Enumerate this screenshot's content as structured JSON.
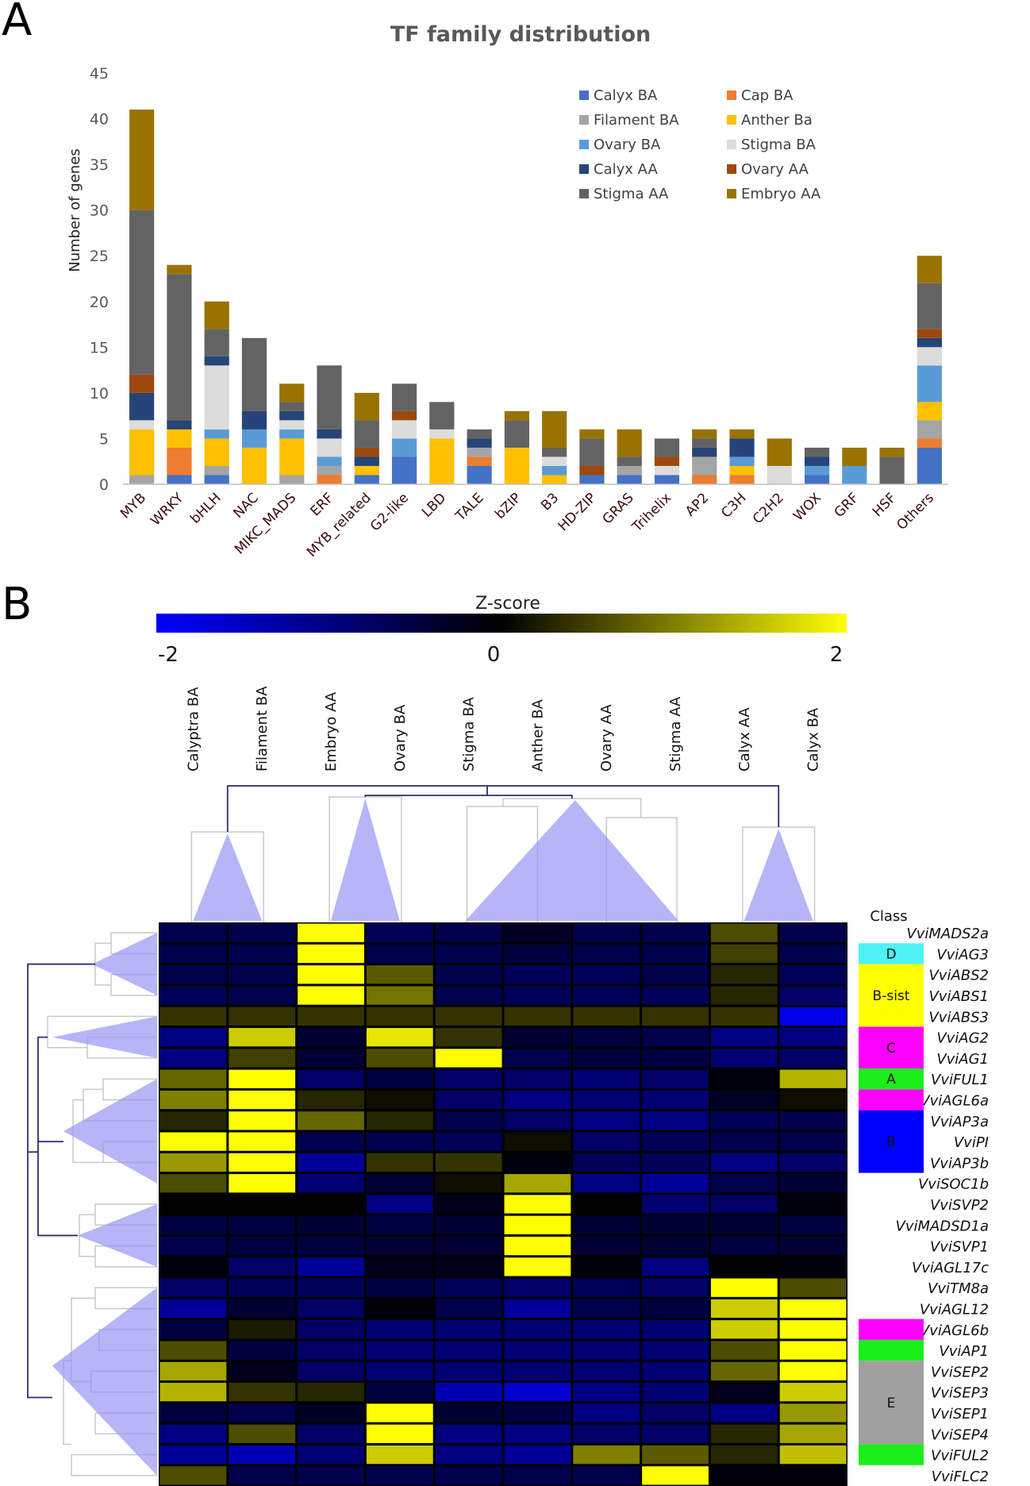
{
  "panels": {
    "a": "A",
    "b": "B"
  },
  "chart_data": [
    {
      "type": "bar",
      "stacked": true,
      "title": "TF family distribution",
      "xlabel": "",
      "ylabel": "Number of genes",
      "ylim": [
        0,
        45
      ],
      "yticks": [
        0,
        5,
        10,
        15,
        20,
        25,
        30,
        35,
        40,
        45
      ],
      "grid": false,
      "legend_position": "top-right",
      "categories": [
        "MYB",
        "WRKY",
        "bHLH",
        "NAC",
        "MIKC_MADS",
        "ERF",
        "MYB_related",
        "G2-like",
        "LBD",
        "TALE",
        "bZIP",
        "B3",
        "HD-ZIP",
        "GRAS",
        "Trihelix",
        "AP2",
        "C3H",
        "C2H2",
        "WOX",
        "GRF",
        "HSF",
        "Others"
      ],
      "series": [
        {
          "name": "Calyx BA",
          "color": "#4472c4",
          "values": [
            0,
            1,
            1,
            0,
            0,
            0,
            1,
            3,
            0,
            2,
            0,
            0,
            1,
            1,
            1,
            0,
            0,
            0,
            1,
            0,
            0,
            4
          ]
        },
        {
          "name": "Cap BA",
          "color": "#ed7d31",
          "values": [
            0,
            3,
            0,
            0,
            0,
            1,
            0,
            0,
            0,
            1,
            0,
            0,
            0,
            0,
            0,
            1,
            1,
            0,
            0,
            0,
            0,
            1
          ]
        },
        {
          "name": "Filament BA",
          "color": "#a5a5a5",
          "values": [
            1,
            0,
            1,
            0,
            1,
            1,
            0,
            0,
            0,
            1,
            0,
            0,
            0,
            1,
            0,
            2,
            0,
            0,
            0,
            0,
            0,
            2
          ]
        },
        {
          "name": "Anther Ba",
          "color": "#ffc000",
          "values": [
            5,
            2,
            3,
            4,
            4,
            0,
            1,
            0,
            5,
            0,
            4,
            1,
            0,
            0,
            0,
            0,
            1,
            0,
            0,
            0,
            0,
            2
          ]
        },
        {
          "name": "Ovary BA",
          "color": "#5b9bd5",
          "values": [
            0,
            0,
            1,
            2,
            1,
            1,
            0,
            2,
            0,
            0,
            0,
            1,
            0,
            0,
            0,
            0,
            1,
            0,
            1,
            2,
            0,
            4
          ]
        },
        {
          "name": "Stigma BA",
          "color": "#dcdcdc",
          "values": [
            1,
            0,
            7,
            0,
            1,
            2,
            0,
            2,
            1,
            0,
            0,
            1,
            0,
            0,
            1,
            0,
            0,
            2,
            0,
            0,
            0,
            2
          ]
        },
        {
          "name": "Calyx AA",
          "color": "#264478",
          "values": [
            3,
            1,
            1,
            2,
            1,
            1,
            1,
            0,
            0,
            1,
            0,
            0,
            0,
            0,
            0,
            1,
            2,
            0,
            1,
            0,
            0,
            1
          ]
        },
        {
          "name": "Ovary AA",
          "color": "#9e480e",
          "values": [
            2,
            0,
            0,
            0,
            0,
            0,
            1,
            1,
            0,
            0,
            0,
            0,
            1,
            0,
            1,
            0,
            0,
            0,
            0,
            0,
            0,
            1
          ]
        },
        {
          "name": "Stigma AA",
          "color": "#636363",
          "values": [
            18,
            16,
            3,
            8,
            1,
            7,
            3,
            3,
            3,
            1,
            3,
            1,
            3,
            1,
            2,
            1,
            0,
            0,
            1,
            0,
            3,
            5
          ]
        },
        {
          "name": "Embryo AA",
          "color": "#997300",
          "values": [
            11,
            1,
            3,
            0,
            2,
            0,
            3,
            0,
            0,
            0,
            1,
            4,
            1,
            3,
            0,
            1,
            1,
            3,
            0,
            2,
            1,
            3
          ]
        }
      ]
    },
    {
      "type": "heatmap",
      "title": "",
      "colorbar": {
        "title": "Z-score",
        "min": -2,
        "mid": 0,
        "max": 2,
        "tick_labels": [
          "-2",
          "0",
          "2"
        ],
        "colors": [
          "#0000ff",
          "#000000",
          "#ffff00"
        ]
      },
      "columns": [
        "Calyptra BA",
        "Filament BA",
        "Embryo AA",
        "Ovary BA",
        "Stigma BA",
        "Anther BA",
        "Ovary AA",
        "Stigma AA",
        "Calyx AA",
        "Calyx BA"
      ],
      "rows": [
        "VviMADS2a",
        "VviAG3",
        "VviABS2",
        "VviABS1",
        "VviABS3",
        "VviAG2",
        "VviAG1",
        "VviFUL1",
        "VviAGL6a",
        "VviAP3a",
        "VviPI",
        "VviAP3b",
        "VviSOC1b",
        "VviSVP2",
        "VviMADSD1a",
        "VviSVP1",
        "VviAGL17c",
        "VviTM8a",
        "VviAGL12",
        "VviAGL6b",
        "VviAP1",
        "VviSEP2",
        "VviSEP3",
        "VviSEP1",
        "VviSEP4",
        "VviFUL2",
        "VviFLC2"
      ],
      "values": [
        [
          -0.6,
          -0.6,
          2.0,
          -0.7,
          -0.6,
          -0.3,
          -0.6,
          -0.6,
          0.6,
          -0.6
        ],
        [
          -0.6,
          -0.6,
          2.0,
          -0.6,
          -0.6,
          -0.5,
          -0.6,
          -0.6,
          0.5,
          -0.6
        ],
        [
          -0.6,
          -0.6,
          2.0,
          0.7,
          -0.6,
          -0.7,
          -0.7,
          -0.6,
          0.3,
          -0.7
        ],
        [
          -0.7,
          -0.6,
          2.0,
          0.9,
          -0.6,
          -0.7,
          -0.7,
          -0.7,
          0.3,
          -0.8
        ],
        [
          0.4,
          0.4,
          0.4,
          0.4,
          0.4,
          0.4,
          0.4,
          0.4,
          0.4,
          -1.8
        ],
        [
          -1.0,
          1.6,
          -0.4,
          1.8,
          0.4,
          -0.4,
          -0.5,
          -0.6,
          -1.0,
          -1.0
        ],
        [
          -1.0,
          0.5,
          -0.4,
          0.6,
          2.0,
          -0.6,
          -0.5,
          -0.5,
          -0.9,
          -0.8
        ],
        [
          0.8,
          2.0,
          -0.8,
          -0.5,
          -0.8,
          -0.8,
          -0.9,
          -0.8,
          -0.1,
          1.4
        ],
        [
          1.0,
          2.0,
          0.3,
          0.1,
          -0.8,
          -1.0,
          -0.9,
          -0.9,
          -0.3,
          0.1
        ],
        [
          0.3,
          2.0,
          0.8,
          0.3,
          -0.6,
          -0.8,
          -1.0,
          -1.0,
          -0.7,
          -0.6
        ],
        [
          2.0,
          2.0,
          -0.6,
          -0.6,
          -0.7,
          0.1,
          -0.8,
          -0.7,
          -0.6,
          -0.6
        ],
        [
          1.2,
          2.0,
          -1.2,
          0.4,
          0.4,
          -0.1,
          -0.7,
          -0.7,
          -1.0,
          -0.8
        ],
        [
          0.6,
          2.0,
          -0.9,
          -0.4,
          0.1,
          1.3,
          -1.0,
          -1.2,
          -0.6,
          -0.4
        ],
        [
          0.0,
          0.0,
          0.0,
          -1.0,
          -0.2,
          2.0,
          0.0,
          -0.9,
          -0.8,
          -0.1
        ],
        [
          -0.5,
          -0.5,
          -0.4,
          -0.5,
          -0.4,
          2.0,
          -0.4,
          -0.4,
          -0.4,
          -0.5
        ],
        [
          -0.6,
          -0.5,
          -0.5,
          -0.4,
          -0.4,
          2.0,
          -0.4,
          -0.4,
          -0.5,
          -0.4
        ],
        [
          -0.1,
          -0.8,
          -1.2,
          -0.2,
          -0.2,
          2.0,
          -0.1,
          -1.0,
          0.0,
          -0.1
        ],
        [
          -0.8,
          -0.7,
          -0.7,
          -0.5,
          -0.7,
          -0.8,
          -0.7,
          -0.8,
          2.0,
          0.6
        ],
        [
          -1.2,
          -0.4,
          -0.8,
          -0.1,
          -0.6,
          -1.2,
          -0.6,
          -0.5,
          1.6,
          2.0
        ],
        [
          -0.5,
          0.2,
          -0.8,
          -0.9,
          -0.9,
          -0.9,
          -0.9,
          -0.9,
          1.6,
          2.0
        ],
        [
          0.6,
          -0.5,
          -0.8,
          -0.9,
          -0.9,
          -0.9,
          -0.9,
          -0.9,
          0.6,
          2.0
        ],
        [
          1.3,
          -0.2,
          -0.8,
          -0.9,
          -0.9,
          -0.9,
          -0.9,
          -0.9,
          0.8,
          2.0
        ],
        [
          1.4,
          0.4,
          0.3,
          -0.5,
          -1.4,
          -1.6,
          -1.0,
          -0.9,
          -0.2,
          1.6
        ],
        [
          -0.5,
          -0.6,
          -0.3,
          2.0,
          -0.4,
          -0.5,
          -1.0,
          -0.8,
          -1.0,
          1.2
        ],
        [
          -1.0,
          0.6,
          -0.8,
          2.0,
          -1.0,
          -1.0,
          -0.8,
          -0.8,
          0.3,
          1.3
        ],
        [
          -1.2,
          -1.4,
          -0.9,
          1.6,
          -1.0,
          -1.2,
          1.0,
          0.7,
          0.3,
          1.5
        ],
        [
          0.6,
          -0.6,
          -0.6,
          -0.6,
          -0.6,
          -0.6,
          -0.6,
          2.0,
          -0.1,
          -0.1
        ]
      ],
      "class_title": "Class",
      "classes": [
        {
          "label": "D",
          "color": "#4df2f2",
          "first_row": 1,
          "last_row": 1
        },
        {
          "label": "B-sist",
          "color": "#ffff00",
          "first_row": 2,
          "last_row": 4
        },
        {
          "label": "C",
          "color": "#ff00ff",
          "first_row": 5,
          "last_row": 6
        },
        {
          "label": "A",
          "color": "#1aee1a",
          "first_row": 7,
          "last_row": 7
        },
        {
          "label": "",
          "color": "#ff00ff",
          "first_row": 8,
          "last_row": 8
        },
        {
          "label": "B",
          "color": "#0000ff",
          "first_row": 9,
          "last_row": 11
        },
        {
          "label": "",
          "color": "#ff00ff",
          "first_row": 19,
          "last_row": 19
        },
        {
          "label": "",
          "color": "#1aee1a",
          "first_row": 20,
          "last_row": 20
        },
        {
          "label": "E",
          "color": "#a0a0a0",
          "first_row": 21,
          "last_row": 24
        },
        {
          "label": "",
          "color": "#1aee1a",
          "first_row": 25,
          "last_row": 25
        }
      ]
    }
  ]
}
